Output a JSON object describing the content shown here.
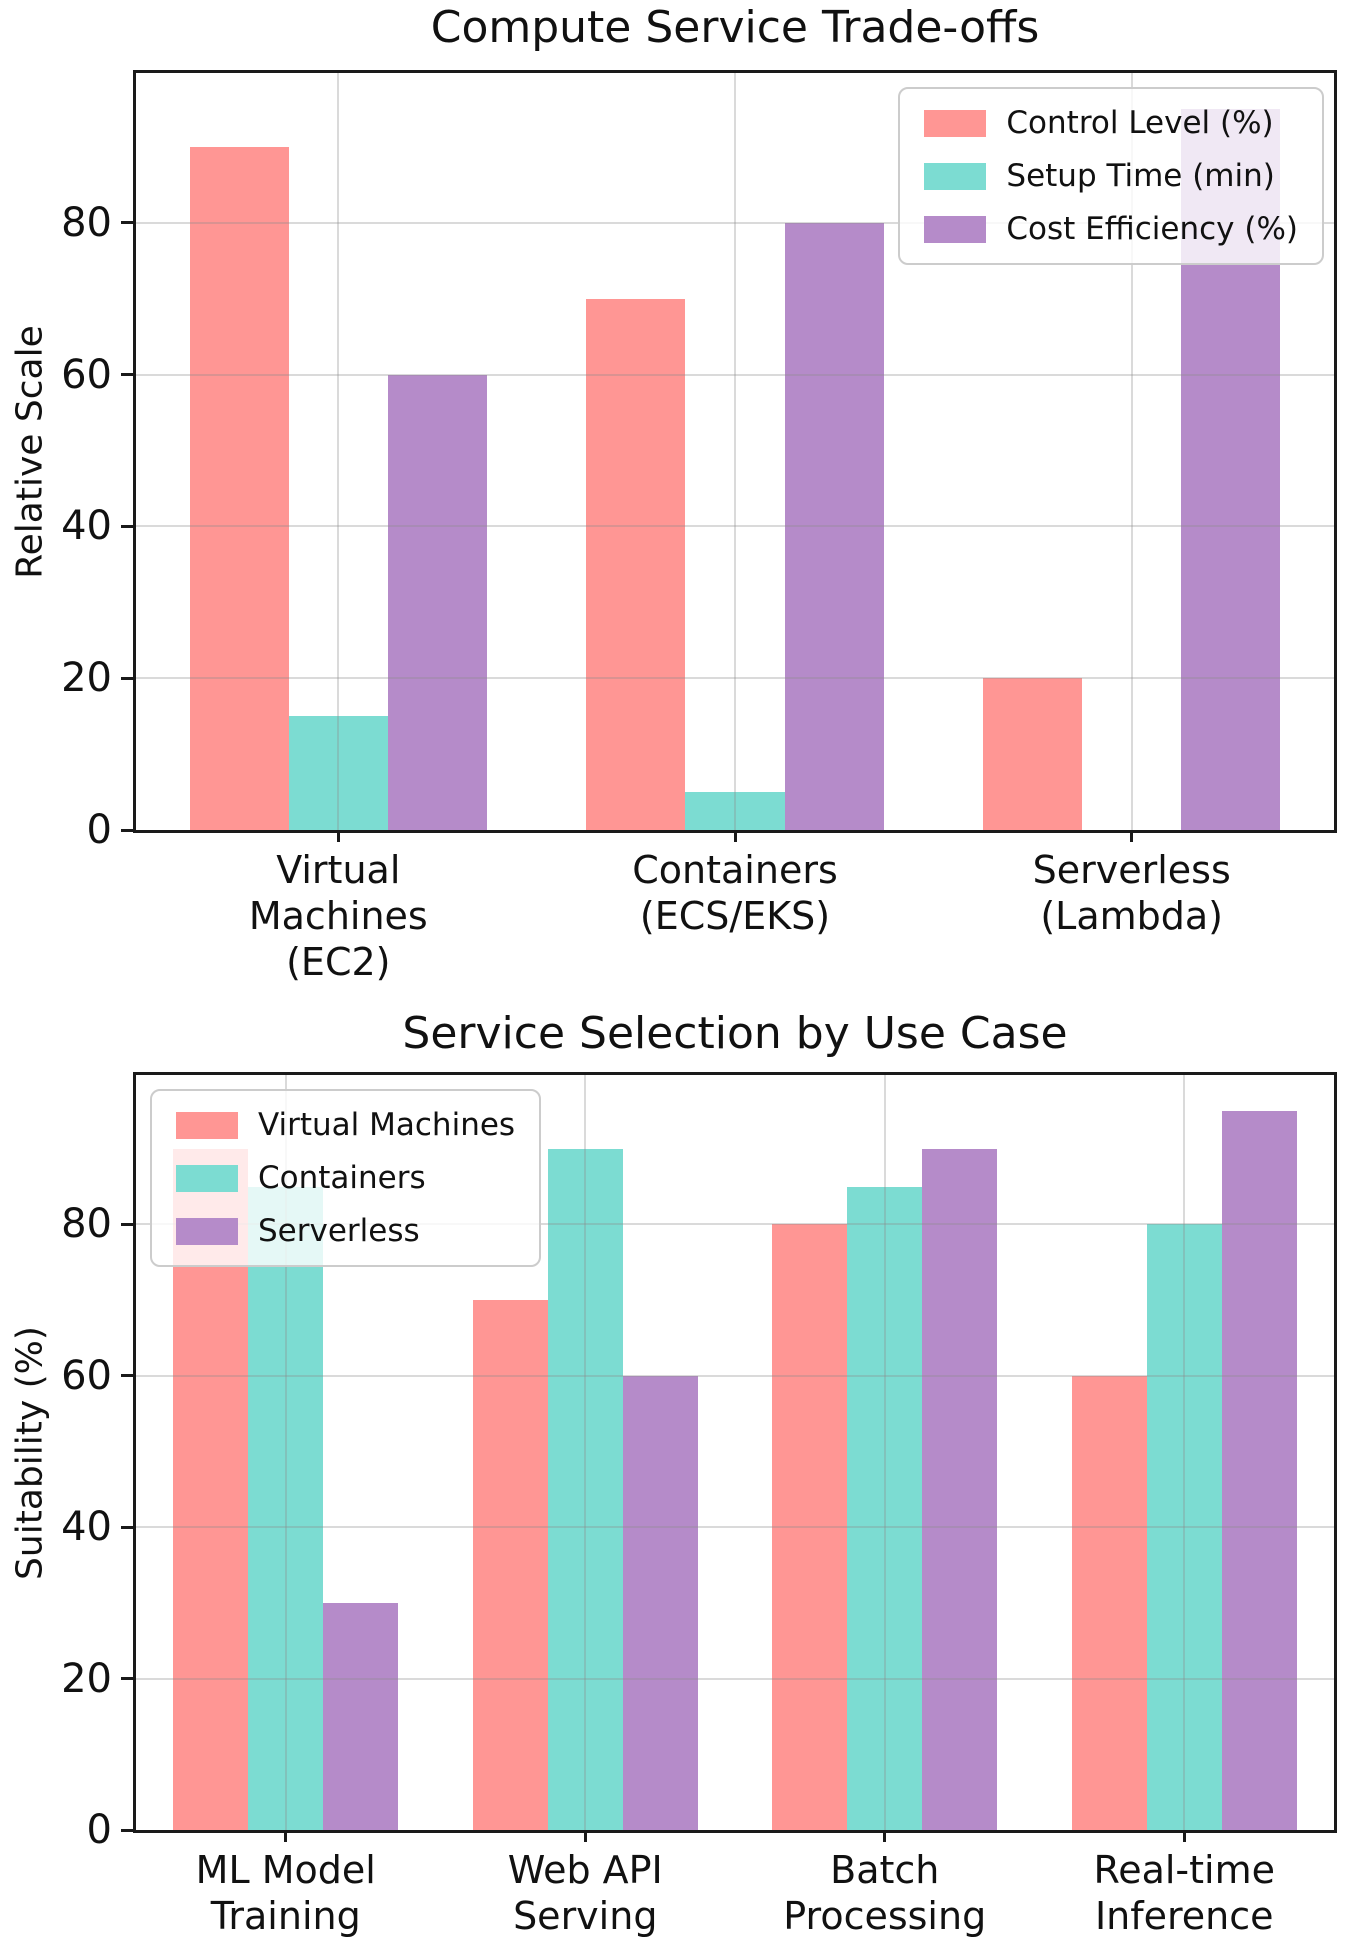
{
  "page": {
    "background": "#ffffff"
  },
  "chart_data": [
    {
      "type": "bar",
      "title": "Compute Service Trade-offs",
      "ylabel": "Relative Scale",
      "xlabel": "",
      "categories": [
        "Virtual\nMachines\n(EC2)",
        "Containers\n(ECS/EKS)",
        "Serverless\n(Lambda)"
      ],
      "series": [
        {
          "name": "Control Level (%)",
          "color": "#FF9694",
          "values": [
            90,
            70,
            20
          ]
        },
        {
          "name": "Setup Time (min)",
          "color": "#7CDCD2",
          "values": [
            15,
            5,
            0
          ]
        },
        {
          "name": "Cost Efficiency (%)",
          "color": "#B58BC9",
          "values": [
            60,
            80,
            95
          ]
        }
      ],
      "yticks": [
        0,
        20,
        40,
        60,
        80
      ],
      "ylim": [
        0,
        99.75
      ],
      "xlim": [
        -0.51,
        2.51
      ],
      "bar_width": 0.25,
      "grid": true,
      "legend_position": "upper-right"
    },
    {
      "type": "bar",
      "title": "Service Selection by Use Case",
      "ylabel": "Suitability (%)",
      "xlabel": "",
      "categories": [
        "ML Model\nTraining",
        "Web API\nServing",
        "Batch\nProcessing",
        "Real-time\nInference"
      ],
      "series": [
        {
          "name": "Virtual Machines",
          "color": "#FF9694",
          "values": [
            90,
            70,
            80,
            60
          ]
        },
        {
          "name": "Containers",
          "color": "#7CDCD2",
          "values": [
            85,
            90,
            85,
            80
          ]
        },
        {
          "name": "Serverless",
          "color": "#B58BC9",
          "values": [
            30,
            60,
            90,
            95
          ]
        }
      ],
      "yticks": [
        0,
        20,
        40,
        60,
        80
      ],
      "ylim": [
        0,
        99.75
      ],
      "xlim": [
        -0.5,
        3.5
      ],
      "bar_width": 0.25,
      "grid": true,
      "legend_position": "upper-left"
    }
  ]
}
